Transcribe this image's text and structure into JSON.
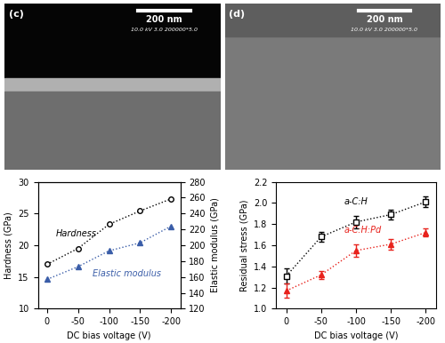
{
  "images": [
    {
      "label": "(c)",
      "scale_bar": "200 nm",
      "info": "10.0 kV 3.0 200000*5.0"
    },
    {
      "label": "(d)",
      "scale_bar": "200 nm",
      "info": "10.0 kV 3.0 200000*5.0"
    }
  ],
  "chart_data": [
    {
      "type": "line",
      "xlabel": "DC bias voltage (V)",
      "ylabel": "Hardness (GPa)",
      "y2label": "Elastic modulus (GPa)",
      "categories": [
        "0",
        "-50",
        "-100",
        "-150",
        "-200"
      ],
      "ylim": [
        10,
        30
      ],
      "yticks": [
        10,
        15,
        20,
        25,
        30
      ],
      "y2lim": [
        120,
        280
      ],
      "y2ticks": [
        120,
        140,
        160,
        180,
        200,
        220,
        240,
        260,
        280
      ],
      "series": [
        {
          "name": "Hardness",
          "color": "#000000",
          "marker": "circle",
          "line_style": "dotted",
          "values": [
            17.0,
            19.5,
            23.3,
            25.4,
            27.3
          ]
        },
        {
          "name": "Elastic modulus",
          "color": "#3a5da8",
          "marker": "triangle",
          "line_style": "dotted",
          "axis": "y2",
          "values": [
            157,
            173,
            193,
            203,
            224
          ]
        }
      ]
    },
    {
      "type": "line",
      "xlabel": "DC bias voltage (V)",
      "ylabel": "Residual stress (GPa)",
      "categories": [
        "0",
        "-50",
        "-100",
        "-150",
        "-200"
      ],
      "ylim": [
        1.0,
        2.2
      ],
      "yticks": [
        1.0,
        1.2,
        1.4,
        1.6,
        1.8,
        2.0,
        2.2
      ],
      "series": [
        {
          "name": "a-C:H",
          "color": "#000000",
          "marker": "square",
          "line_style": "dotted",
          "values": [
            1.31,
            1.68,
            1.82,
            1.89,
            2.01
          ],
          "errors": [
            0.07,
            0.05,
            0.06,
            0.05,
            0.05
          ]
        },
        {
          "name": "a-C:H:Pd",
          "color": "#e8221c",
          "marker": "triangle",
          "line_style": "dotted",
          "values": [
            1.17,
            1.32,
            1.55,
            1.61,
            1.72
          ],
          "errors": [
            0.07,
            0.04,
            0.06,
            0.05,
            0.04
          ]
        }
      ]
    }
  ]
}
